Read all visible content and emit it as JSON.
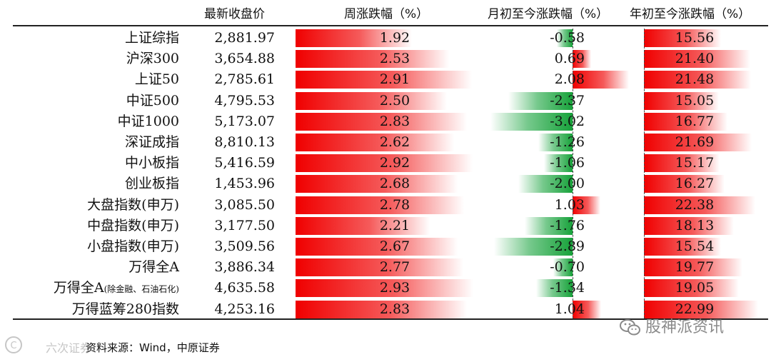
{
  "headers": {
    "price": "最新收盘价",
    "weekly": "周涨跌幅（%）",
    "mtd": "月初至今涨跌幅（%）",
    "ytd": "年初至今涨跌幅（%）"
  },
  "chart_data": {
    "type": "table",
    "columns": [
      "最新收盘价",
      "周涨跌幅（%）",
      "月初至今涨跌幅（%）",
      "年初至今涨跌幅（%）"
    ],
    "rows": [
      {
        "name": "上证综指",
        "name_small": "",
        "price": "2,881.97",
        "weekly": 1.92,
        "mtd": -0.58,
        "ytd": 15.56
      },
      {
        "name": "沪深300",
        "name_small": "",
        "price": "3,654.88",
        "weekly": 2.53,
        "mtd": 0.69,
        "ytd": 21.4
      },
      {
        "name": "上证50",
        "name_small": "",
        "price": "2,785.61",
        "weekly": 2.91,
        "mtd": 2.08,
        "ytd": 21.48
      },
      {
        "name": "中证500",
        "name_small": "",
        "price": "4,795.53",
        "weekly": 2.5,
        "mtd": -2.37,
        "ytd": 15.05
      },
      {
        "name": "中证1000",
        "name_small": "",
        "price": "5,173.07",
        "weekly": 2.83,
        "mtd": -3.02,
        "ytd": 16.77
      },
      {
        "name": "深证成指",
        "name_small": "",
        "price": "8,810.13",
        "weekly": 2.62,
        "mtd": -1.26,
        "ytd": 21.69
      },
      {
        "name": "中小板指",
        "name_small": "",
        "price": "5,416.59",
        "weekly": 2.92,
        "mtd": -1.06,
        "ytd": 15.17
      },
      {
        "name": "创业板指",
        "name_small": "",
        "price": "1,453.96",
        "weekly": 2.68,
        "mtd": -2.0,
        "ytd": 16.27
      },
      {
        "name": "大盘指数(申万)",
        "name_small": "",
        "price": "3,085.50",
        "weekly": 2.78,
        "mtd": 1.03,
        "ytd": 22.38
      },
      {
        "name": "中盘指数(申万)",
        "name_small": "",
        "price": "3,177.50",
        "weekly": 2.21,
        "mtd": -1.76,
        "ytd": 18.13
      },
      {
        "name": "小盘指数(申万)",
        "name_small": "",
        "price": "3,509.56",
        "weekly": 2.67,
        "mtd": -2.89,
        "ytd": 15.54
      },
      {
        "name": "万得全A",
        "name_small": "",
        "price": "3,886.34",
        "weekly": 2.77,
        "mtd": -0.7,
        "ytd": 19.77
      },
      {
        "name": "万得全A",
        "name_small": "(除金融、石油石化)",
        "price": "4,635.58",
        "weekly": 2.93,
        "mtd": -1.34,
        "ytd": 19.05
      },
      {
        "name": "万得蓝筹280指数",
        "name_small": "",
        "price": "4,253.16",
        "weekly": 2.83,
        "mtd": 1.04,
        "ytd": 22.99
      }
    ],
    "weekly_range": [
      0,
      3.3
    ],
    "mtd_range": [
      -3.5,
      2.5
    ],
    "ytd_range": [
      0,
      25
    ]
  },
  "colors": {
    "positive": "#f00000",
    "negative": "#17a23a"
  },
  "footer": {
    "source": "资料来源：Wind，中原证券",
    "watermark": "六次证券",
    "logo_text": "股神派资讯",
    "logo_icon": "wechat-icon"
  }
}
